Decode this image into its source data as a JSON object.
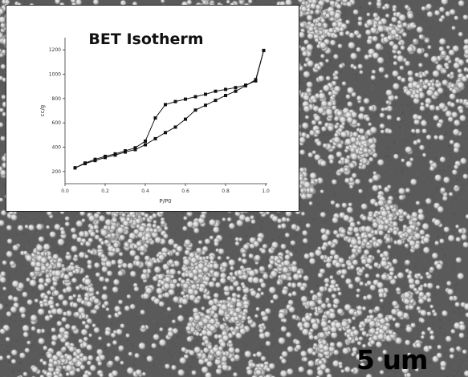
{
  "scale_bar_label": "5 um",
  "colors": {
    "chart_line": "#111111",
    "sem_background": "#5a5a5a",
    "sem_particle": "#cfcfcf"
  },
  "chart_data": {
    "type": "line",
    "title": "BET Isotherm",
    "xlabel": "P/P0",
    "ylabel": "cc/g",
    "xlim": [
      0.0,
      1.0
    ],
    "ylim": [
      100,
      1300
    ],
    "xticks": [
      "0.0",
      "0.2",
      "0.4",
      "0.6",
      "0.8",
      "1.0"
    ],
    "yticks": [
      "200",
      "400",
      "600",
      "800",
      "1000",
      "1200"
    ],
    "grid": false,
    "series": [
      {
        "x": [
          0.05,
          0.1,
          0.15,
          0.2,
          0.25,
          0.3,
          0.35,
          0.4,
          0.45,
          0.5,
          0.55,
          0.6,
          0.65,
          0.7,
          0.75,
          0.8,
          0.85,
          0.9,
          0.95,
          0.99
        ],
        "y": [
          230,
          265,
          290,
          315,
          335,
          360,
          380,
          420,
          470,
          520,
          565,
          630,
          705,
          745,
          785,
          825,
          860,
          905,
          955,
          1195
        ]
      },
      {
        "x": [
          0.99,
          0.95,
          0.9,
          0.85,
          0.8,
          0.75,
          0.7,
          0.65,
          0.6,
          0.55,
          0.5,
          0.45,
          0.4,
          0.35,
          0.3,
          0.25,
          0.2,
          0.15,
          0.1,
          0.05
        ],
        "y": [
          1195,
          945,
          910,
          890,
          875,
          860,
          835,
          815,
          795,
          775,
          750,
          640,
          450,
          395,
          370,
          345,
          325,
          300,
          270,
          230
        ]
      }
    ]
  }
}
